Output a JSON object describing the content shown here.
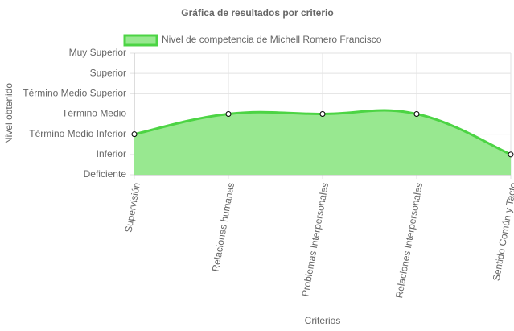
{
  "chart_data": {
    "type": "area",
    "title": "Gráfica de resultados por criterio",
    "x_label": "Criterios",
    "y_label": "Nivel obtenido",
    "categories": [
      "Supervisión",
      "Relaciones humanas",
      "Problemas Interpersonales",
      "Relaciones Interpersonales",
      "Sentido Común y Tacto"
    ],
    "series": [
      {
        "name": "Nivel de competencia de Michell Romero Francisco",
        "color": "#4cd444",
        "fill": "#98e890",
        "values": [
          2,
          3,
          3,
          3,
          1
        ]
      }
    ],
    "ylim": [
      0,
      6
    ],
    "yticks": [
      {
        "value": 0,
        "label": "Deficiente"
      },
      {
        "value": 1,
        "label": "Inferior"
      },
      {
        "value": 2,
        "label": "Término Medio Inferior"
      },
      {
        "value": 3,
        "label": "Término Medio"
      },
      {
        "value": 4,
        "label": "Término Medio Superior"
      },
      {
        "value": 5,
        "label": "Superior"
      },
      {
        "value": 6,
        "label": "Muy Superior"
      }
    ],
    "grid": true,
    "legend": "top"
  }
}
